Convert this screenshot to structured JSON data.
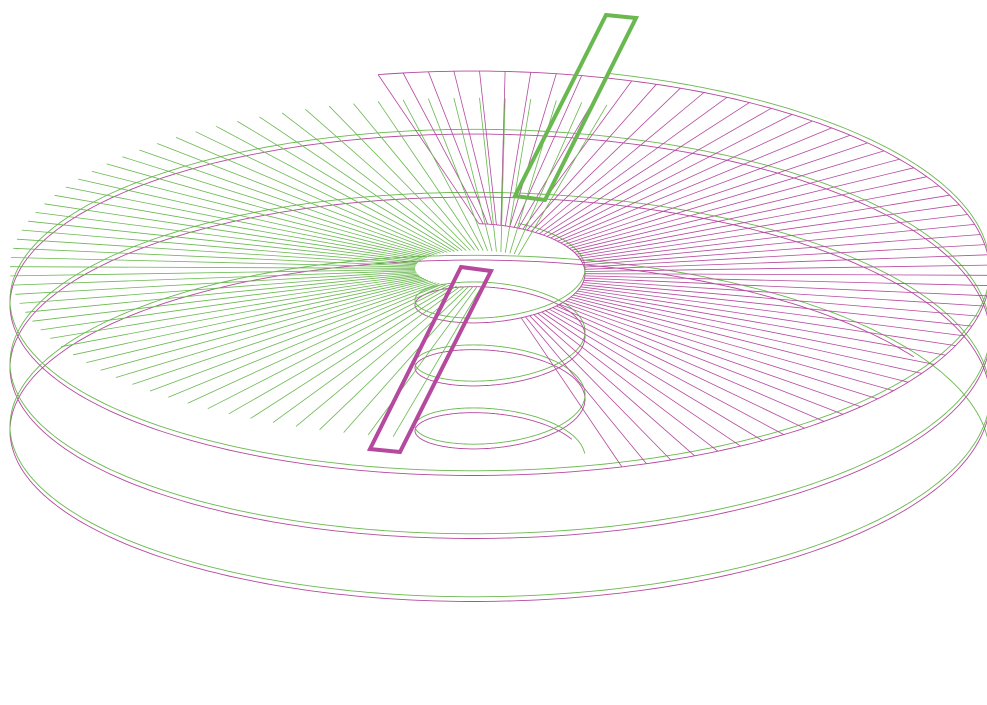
{
  "figure": {
    "kind": "double helicoid wireframe",
    "colors": {
      "magenta": "#b5499e",
      "green": "#6ab850",
      "background": "#ffffff"
    },
    "surfaces": [
      {
        "name": "magenta",
        "color": "#b5499e",
        "phase_deg": 180,
        "marker": "magenta-rectangle"
      },
      {
        "name": "green",
        "color": "#6ab850",
        "phase_deg": 0,
        "marker": "green-rectangle"
      }
    ]
  }
}
